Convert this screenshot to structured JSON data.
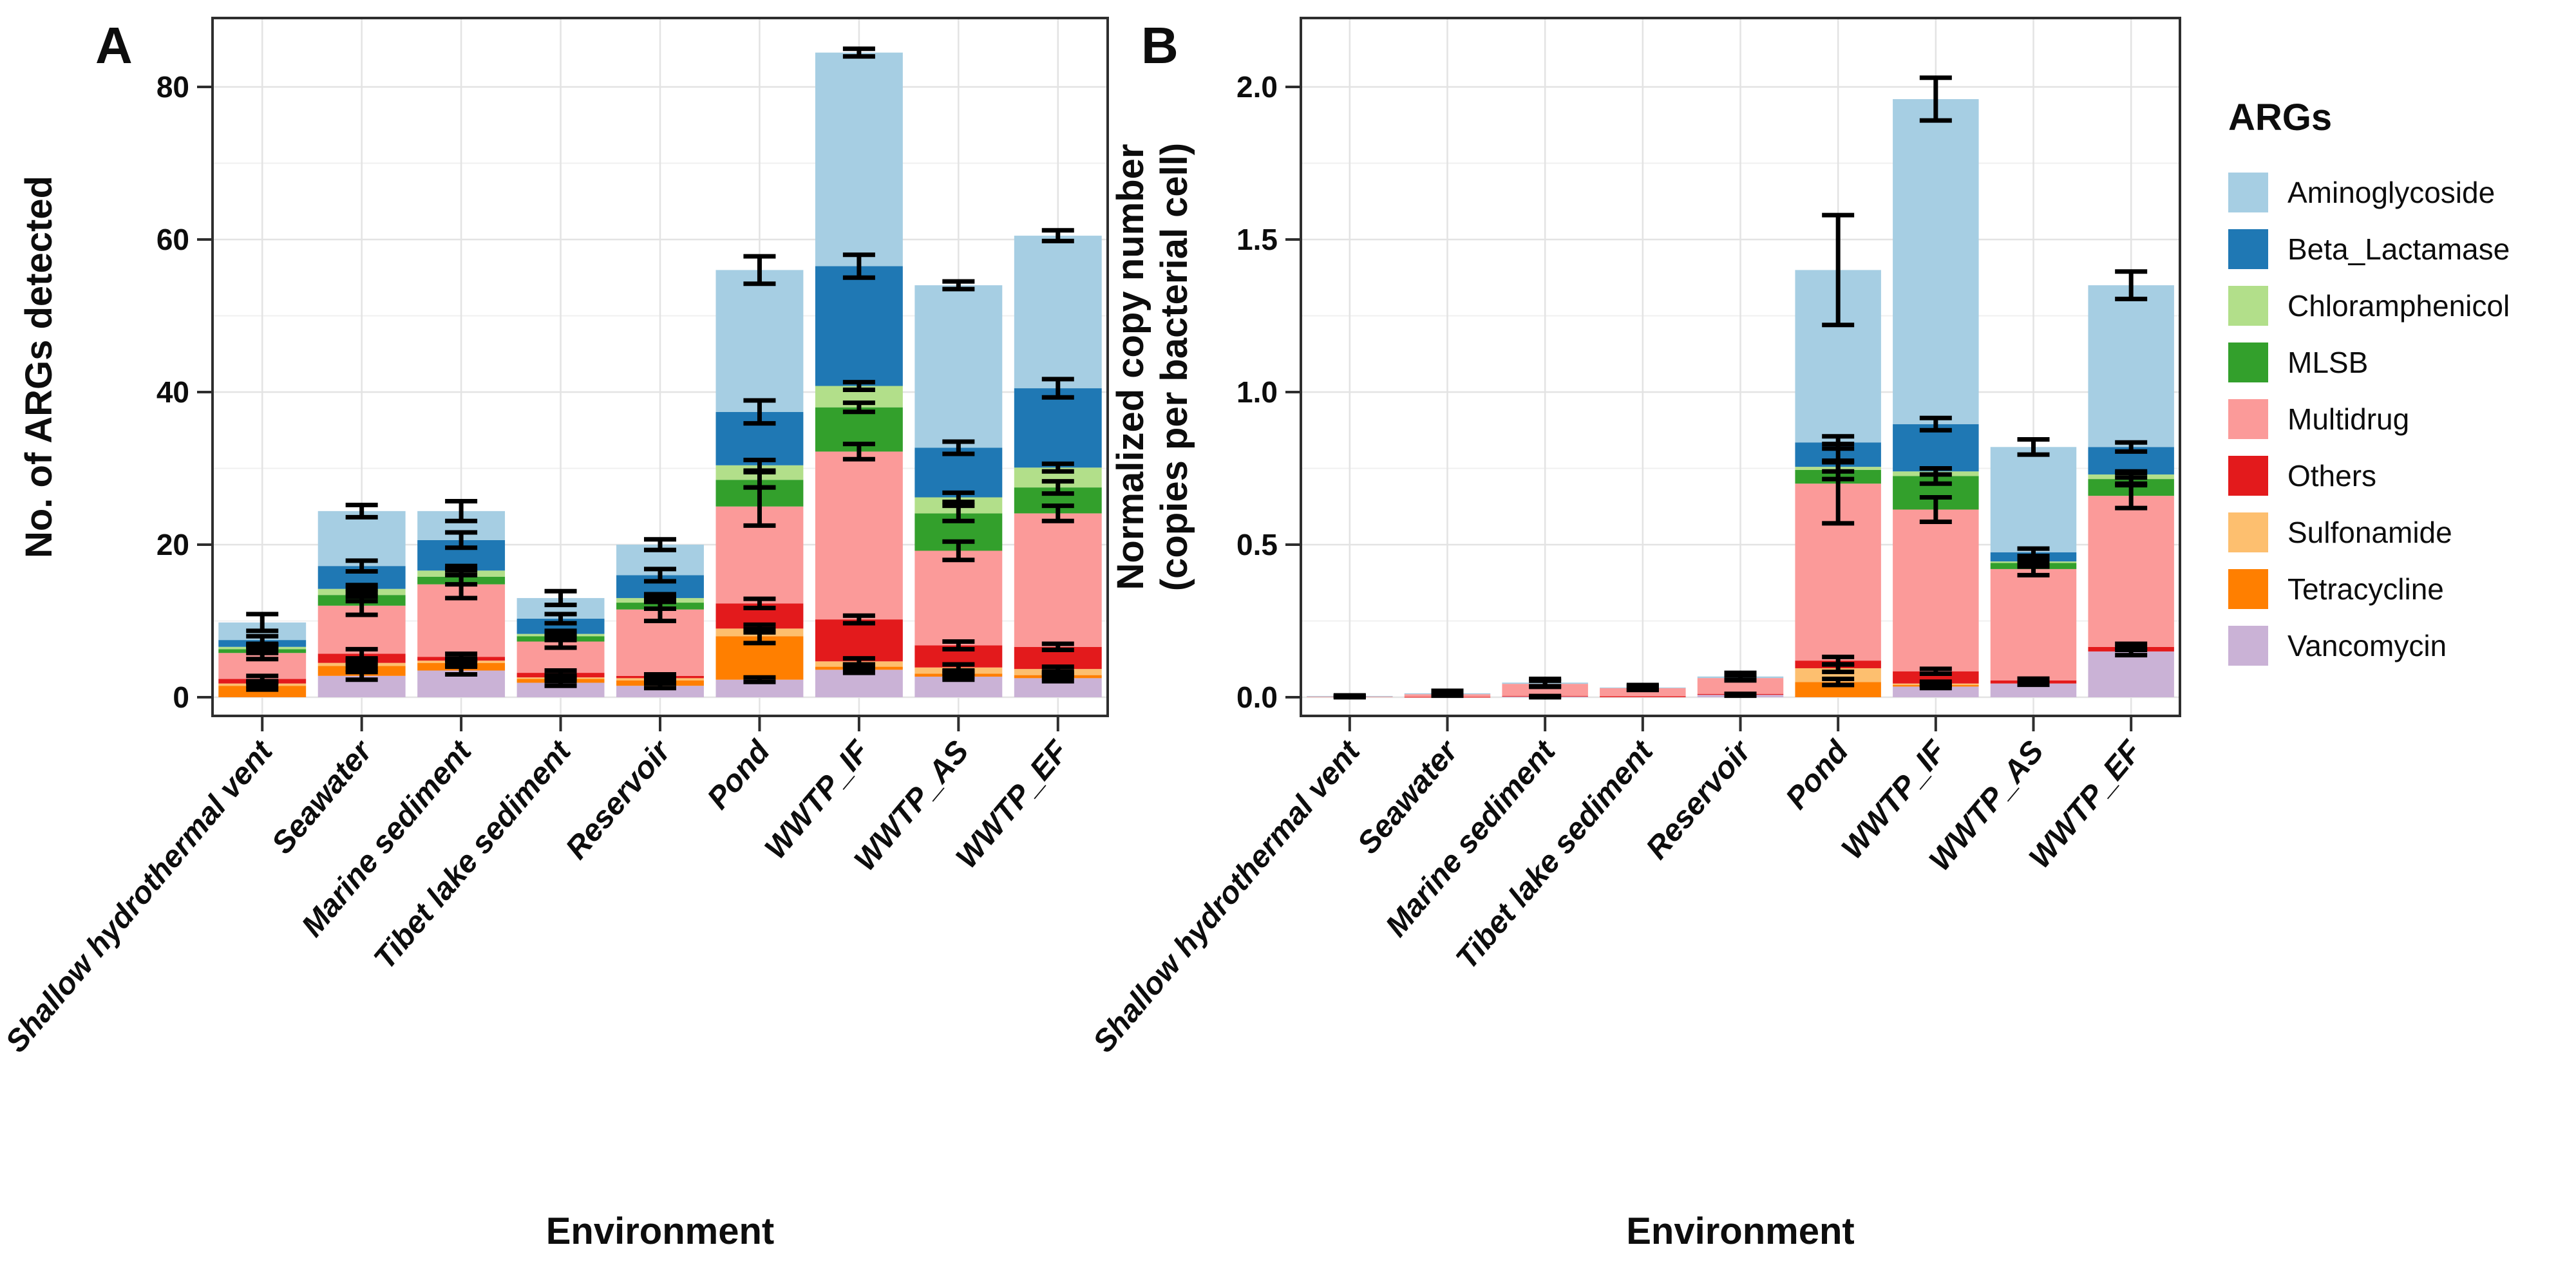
{
  "page": {
    "background": "#FFFFFF"
  },
  "legend": {
    "title": "ARGs",
    "position": "right",
    "items": [
      {
        "label": "Aminoglycoside",
        "color": "#A6CEE3"
      },
      {
        "label": "Beta_Lactamase",
        "color": "#1F78B4"
      },
      {
        "label": "Chloramphenicol",
        "color": "#B2DF8A"
      },
      {
        "label": "MLSB",
        "color": "#33A02C"
      },
      {
        "label": "Multidrug",
        "color": "#FB9A99"
      },
      {
        "label": "Others",
        "color": "#E31A1C"
      },
      {
        "label": "Sulfonamide",
        "color": "#FDBF6F"
      },
      {
        "label": "Tetracycline",
        "color": "#FF7F00"
      },
      {
        "label": "Vancomycin",
        "color": "#CAB2D6"
      }
    ]
  },
  "chart_data": [
    {
      "type": "bar",
      "subtype": "stacked_with_error_bars",
      "panel_label": "A",
      "xlabel": "Environment",
      "ylabel_lines": [
        "No. of ARGs detected"
      ],
      "categories": [
        "Shallow hydrothermal vent",
        "Seawater",
        "Marine sediment",
        "Tibet lake sediment",
        "Reservoir",
        "Pond",
        "WWTP_IF",
        "WWTP_AS",
        "WWTP_EF"
      ],
      "yticks": [
        0,
        20,
        40,
        60,
        80
      ],
      "ytick_labels": [
        "0",
        "20",
        "40",
        "60",
        "80"
      ],
      "minor_yticks": [
        10,
        30,
        50,
        70
      ],
      "ylim": [
        0,
        89
      ],
      "grid": true,
      "stack_note": "stacked bottom-to-top in reverse order of series list (Vancomycin at bottom, Aminoglycoside on top); errors are half-widths of error bars drawn at the cumulative top of each segment",
      "series": [
        {
          "name": "Aminoglycoside",
          "values": [
            2.3,
            7.2,
            3.8,
            2.7,
            4.0,
            18.6,
            28.0,
            21.3,
            20.0
          ],
          "errors": [
            1.1,
            0.8,
            1.3,
            0.9,
            0.7,
            1.8,
            0.5,
            0.5,
            0.7
          ]
        },
        {
          "name": "Beta_Lactamase",
          "values": [
            0.9,
            3.0,
            4.0,
            2.0,
            3.0,
            7.0,
            15.7,
            6.5,
            10.4
          ],
          "errors": [
            0.5,
            0.7,
            1.0,
            0.6,
            0.8,
            1.5,
            1.5,
            0.8,
            1.2
          ]
        },
        {
          "name": "Chloramphenicol",
          "values": [
            0.3,
            0.8,
            0.8,
            0.3,
            0.6,
            1.9,
            2.8,
            2.1,
            2.6
          ],
          "errors": [
            0.3,
            0.5,
            0.6,
            0.4,
            0.5,
            0.7,
            0.5,
            0.6,
            0.5
          ]
        },
        {
          "name": "MLSB",
          "values": [
            0.5,
            1.4,
            1.0,
            0.7,
            0.9,
            3.5,
            5.8,
            4.9,
            3.4
          ],
          "errors": [
            0.5,
            0.8,
            1.0,
            0.5,
            0.8,
            1.0,
            0.6,
            1.0,
            0.8
          ]
        },
        {
          "name": "Multidrug",
          "values": [
            3.4,
            6.3,
            9.5,
            4.1,
            8.7,
            12.7,
            22.0,
            12.4,
            17.5
          ],
          "errors": [
            0.8,
            1.2,
            1.8,
            0.8,
            1.5,
            2.5,
            1.0,
            1.2,
            1.0
          ]
        },
        {
          "name": "Others",
          "values": [
            0.6,
            1.2,
            0.5,
            0.6,
            0.3,
            3.3,
            5.5,
            2.9,
            2.9
          ],
          "errors": [
            0.4,
            0.6,
            0.4,
            0.3,
            0.2,
            0.6,
            0.5,
            0.5,
            0.4
          ]
        },
        {
          "name": "Sulfonamide",
          "values": [
            0.3,
            0.4,
            0.3,
            0.2,
            0.3,
            1.0,
            0.7,
            0.8,
            0.8
          ],
          "errors": [
            0.3,
            0.4,
            0.3,
            0.2,
            0.3,
            0.5,
            0.4,
            0.4,
            0.3
          ]
        },
        {
          "name": "Tetracycline",
          "values": [
            1.5,
            1.3,
            1.0,
            0.5,
            0.7,
            5.7,
            0.4,
            0.4,
            0.4
          ],
          "errors": [
            0.5,
            0.5,
            0.4,
            0.3,
            0.3,
            0.9,
            0.3,
            0.3,
            0.3
          ]
        },
        {
          "name": "Vancomycin",
          "values": [
            0.0,
            2.8,
            3.5,
            1.9,
            1.5,
            2.3,
            3.6,
            2.7,
            2.5
          ],
          "errors": [
            0.0,
            0.5,
            0.5,
            0.4,
            0.3,
            0.3,
            0.4,
            0.4,
            0.4
          ]
        }
      ],
      "totals": [
        9.8,
        24.4,
        24.4,
        13.0,
        20.0,
        56.0,
        84.5,
        54.0,
        60.5
      ]
    },
    {
      "type": "bar",
      "subtype": "stacked_with_error_bars",
      "panel_label": "B",
      "xlabel": "Environment",
      "ylabel_lines": [
        "Normalized copy number",
        "(copies per bacterial cell)"
      ],
      "categories": [
        "Shallow hydrothermal vent",
        "Seawater",
        "Marine sediment",
        "Tibet lake sediment",
        "Reservoir",
        "Pond",
        "WWTP_IF",
        "WWTP_AS",
        "WWTP_EF"
      ],
      "yticks": [
        0,
        0.5,
        1.0,
        1.5,
        2.0
      ],
      "ytick_labels": [
        "0.0",
        "0.5",
        "1.0",
        "1.5",
        "2.0"
      ],
      "minor_yticks": [
        0.25,
        0.75,
        1.25,
        1.75
      ],
      "ylim": [
        0,
        2.22
      ],
      "grid": true,
      "stack_note": "stacked bottom-to-top in reverse order of series list (Vancomycin at bottom, Aminoglycoside on top); errors are half-widths of error bars drawn at the cumulative top of each segment",
      "series": [
        {
          "name": "Aminoglycoside",
          "values": [
            0.002,
            0.003,
            0.004,
            0.002,
            0.005,
            0.565,
            1.065,
            0.345,
            0.53
          ],
          "errors": [
            0.002,
            0.008,
            0.012,
            0.008,
            0.012,
            0.18,
            0.07,
            0.025,
            0.045
          ]
        },
        {
          "name": "Beta_Lactamase",
          "values": [
            0,
            0,
            0,
            0,
            0,
            0.08,
            0.155,
            0.03,
            0.09
          ],
          "errors": [
            0,
            0,
            0,
            0,
            0,
            0.02,
            0.02,
            0.012,
            0.015
          ]
        },
        {
          "name": "Chloramphenicol",
          "values": [
            0,
            0,
            0,
            0,
            0,
            0.01,
            0.015,
            0.005,
            0.015
          ],
          "errors": [
            0,
            0,
            0,
            0,
            0,
            0.015,
            0.01,
            0.008,
            0.01
          ]
        },
        {
          "name": "MLSB",
          "values": [
            0,
            0,
            0,
            0,
            0,
            0.045,
            0.11,
            0.02,
            0.055
          ],
          "errors": [
            0,
            0,
            0,
            0,
            0,
            0.03,
            0.025,
            0.012,
            0.02
          ]
        },
        {
          "name": "Multidrug",
          "values": [
            0.002,
            0.009,
            0.04,
            0.027,
            0.052,
            0.58,
            0.53,
            0.365,
            0.495
          ],
          "errors": [
            0.002,
            0.004,
            0.01,
            0.006,
            0.008,
            0.13,
            0.04,
            0.02,
            0.04
          ]
        },
        {
          "name": "Others",
          "values": [
            0,
            0.001,
            0.002,
            0.003,
            0.003,
            0.025,
            0.04,
            0.01,
            0.015
          ],
          "errors": [
            0,
            0,
            0,
            0,
            0,
            0.012,
            0.008,
            0.006,
            0.01
          ]
        },
        {
          "name": "Sulfonamide",
          "values": [
            0,
            0,
            0,
            0,
            0,
            0.045,
            0.005,
            0,
            0
          ],
          "errors": [
            0,
            0,
            0,
            0,
            0,
            0.012,
            0.006,
            0,
            0
          ]
        },
        {
          "name": "Tetracycline",
          "values": [
            0,
            0,
            0,
            0,
            0,
            0.05,
            0.005,
            0,
            0
          ],
          "errors": [
            0,
            0,
            0,
            0,
            0,
            0.01,
            0,
            0,
            0
          ]
        },
        {
          "name": "Vancomycin",
          "values": [
            0,
            0,
            0.002,
            0,
            0.008,
            0,
            0.035,
            0.045,
            0.15
          ],
          "errors": [
            0,
            0,
            0.002,
            0,
            0.003,
            0,
            0.005,
            0.004,
            0.012
          ]
        }
      ],
      "totals": [
        0.004,
        0.013,
        0.048,
        0.032,
        0.068,
        1.4,
        1.955,
        0.82,
        1.35
      ]
    }
  ]
}
